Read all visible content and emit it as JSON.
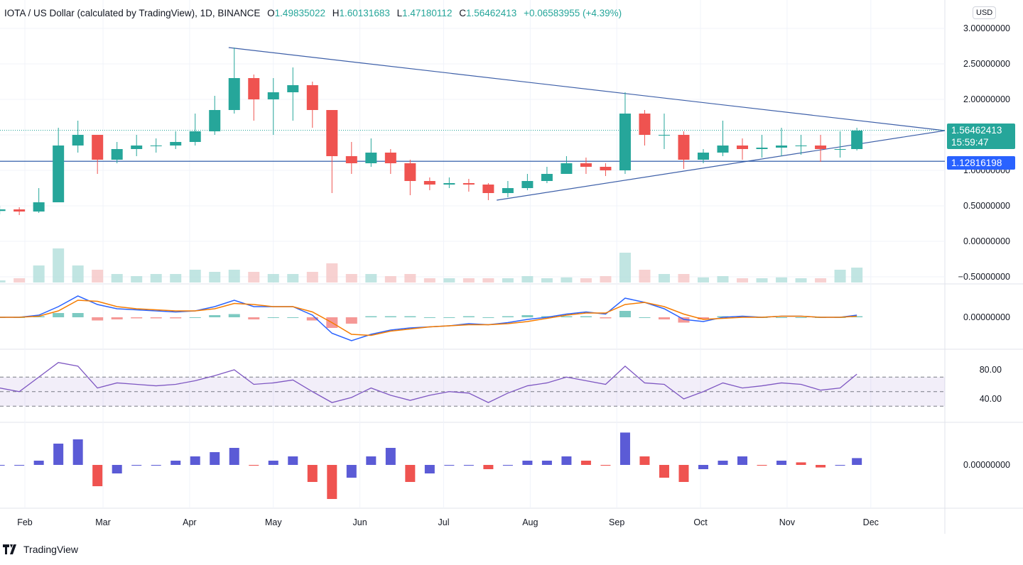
{
  "header": {
    "symbol": "IOTA / US Dollar (calculated by TradingView), 1D, BINANCE",
    "o_label": "O",
    "o": "1.49835022",
    "h_label": "H",
    "h": "1.60131683",
    "l_label": "L",
    "l": "1.47180112",
    "c_label": "C",
    "c": "1.56462413",
    "change": "+0.06583955 (+4.39%)"
  },
  "currency_button": "USD",
  "price_tag": {
    "value": "1.56462413",
    "countdown": "15:59:47",
    "color": "#26a69a"
  },
  "level_tag": {
    "value": "1.12816198",
    "color": "#2962ff"
  },
  "branding": "TradingView",
  "colors": {
    "up": "#26a69a",
    "down": "#ef5350",
    "trendline": "#3d5fa8",
    "macd": "#2962ff",
    "signal": "#f57c00",
    "rsi": "#7e57c2",
    "osc_up": "#5b5bd6",
    "osc_down": "#ef5350"
  },
  "chart_data": {
    "type": "candlestick",
    "x_ticks": [
      "Feb",
      "Mar",
      "Apr",
      "May",
      "Jun",
      "Jul",
      "Aug",
      "Sep",
      "Oct",
      "Nov",
      "Dec"
    ],
    "price_ticks": [
      "3.00000000",
      "2.50000000",
      "2.00000000",
      "1.00000000",
      "0.50000000",
      "0.00000000",
      "−0.50000000"
    ],
    "macd_ticks": [
      "0.00000000"
    ],
    "rsi_ticks": [
      "80.00",
      "40.00"
    ],
    "osc_ticks": [
      "0.00000000"
    ],
    "ylim": [
      -0.55,
      3.05
    ],
    "series": {
      "dates": [
        "Jan 23",
        "Jan 30",
        "Feb 6",
        "Feb 13",
        "Feb 20",
        "Feb 27",
        "Mar 6",
        "Mar 13",
        "Mar 20",
        "Mar 27",
        "Apr 3",
        "Apr 10",
        "Apr 17",
        "Apr 24",
        "May 1",
        "May 8",
        "May 15",
        "May 22",
        "May 29",
        "Jun 5",
        "Jun 12",
        "Jun 19",
        "Jun 26",
        "Jul 3",
        "Jul 10",
        "Jul 17",
        "Jul 24",
        "Jul 31",
        "Aug 7",
        "Aug 14",
        "Aug 21",
        "Aug 28",
        "Sep 4",
        "Sep 11",
        "Sep 18",
        "Sep 25",
        "Oct 2",
        "Oct 9",
        "Oct 16",
        "Oct 23",
        "Oct 30",
        "Nov 6",
        "Nov 13",
        "Nov 20",
        "Nov 26"
      ],
      "close": [
        0.45,
        0.42,
        0.55,
        1.35,
        1.5,
        1.15,
        1.3,
        1.35,
        1.35,
        1.4,
        1.55,
        1.85,
        2.3,
        2.0,
        2.1,
        2.2,
        1.85,
        1.2,
        1.1,
        1.25,
        1.1,
        0.85,
        0.8,
        0.82,
        0.8,
        0.68,
        0.75,
        0.85,
        0.95,
        1.1,
        1.05,
        1.0,
        1.8,
        1.5,
        1.5,
        1.15,
        1.25,
        1.35,
        1.3,
        1.32,
        1.35,
        1.35,
        1.3,
        1.3,
        1.56
      ],
      "high": [
        0.5,
        0.48,
        0.75,
        1.6,
        1.7,
        1.5,
        1.4,
        1.5,
        1.45,
        1.55,
        1.8,
        2.05,
        2.73,
        2.35,
        2.3,
        2.45,
        2.25,
        1.85,
        1.4,
        1.45,
        1.3,
        1.15,
        0.9,
        0.9,
        0.88,
        0.82,
        0.85,
        0.95,
        1.05,
        1.2,
        1.18,
        1.1,
        2.1,
        1.85,
        1.8,
        1.55,
        1.3,
        1.7,
        1.45,
        1.5,
        1.6,
        1.5,
        1.5,
        1.55,
        1.6
      ],
      "low": [
        0.38,
        0.37,
        0.4,
        0.55,
        1.25,
        0.95,
        1.1,
        1.2,
        1.25,
        1.3,
        1.35,
        1.5,
        1.8,
        1.7,
        1.5,
        1.7,
        1.6,
        0.68,
        0.95,
        1.05,
        0.95,
        0.65,
        0.72,
        0.75,
        0.7,
        0.58,
        0.62,
        0.72,
        0.82,
        0.95,
        0.95,
        0.92,
        0.95,
        1.35,
        1.3,
        1.02,
        1.1,
        1.2,
        1.15,
        1.18,
        1.2,
        1.22,
        1.12,
        1.18,
        1.28
      ],
      "volume": [
        0.05,
        0.1,
        0.4,
        0.8,
        0.4,
        0.3,
        0.2,
        0.15,
        0.2,
        0.2,
        0.3,
        0.25,
        0.3,
        0.25,
        0.2,
        0.2,
        0.25,
        0.45,
        0.2,
        0.2,
        0.15,
        0.2,
        0.1,
        0.1,
        0.1,
        0.1,
        0.1,
        0.15,
        0.1,
        0.12,
        0.1,
        0.15,
        0.7,
        0.3,
        0.2,
        0.2,
        0.12,
        0.15,
        0.1,
        0.1,
        0.12,
        0.1,
        0.1,
        0.3,
        0.35
      ],
      "macd": [
        0.0,
        0.0,
        0.02,
        0.1,
        0.2,
        0.12,
        0.08,
        0.07,
        0.06,
        0.05,
        0.06,
        0.1,
        0.16,
        0.1,
        0.1,
        0.1,
        0.02,
        -0.15,
        -0.22,
        -0.16,
        -0.12,
        -0.1,
        -0.09,
        -0.08,
        -0.06,
        -0.07,
        -0.05,
        -0.02,
        0.0,
        0.03,
        0.05,
        0.03,
        0.18,
        0.14,
        0.08,
        -0.02,
        -0.04,
        0.0,
        0.01,
        0.0,
        0.01,
        0.01,
        0.0,
        0.0,
        0.02
      ],
      "signal": [
        0.0,
        0.0,
        0.01,
        0.06,
        0.16,
        0.15,
        0.1,
        0.08,
        0.07,
        0.06,
        0.06,
        0.08,
        0.13,
        0.12,
        0.1,
        0.1,
        0.05,
        -0.05,
        -0.16,
        -0.17,
        -0.13,
        -0.11,
        -0.09,
        -0.08,
        -0.07,
        -0.07,
        -0.06,
        -0.04,
        -0.01,
        0.02,
        0.04,
        0.04,
        0.12,
        0.14,
        0.1,
        0.03,
        -0.02,
        -0.01,
        0.0,
        0.0,
        0.01,
        0.01,
        0.0,
        0.0,
        0.01
      ],
      "rsi": [
        55,
        50,
        70,
        90,
        85,
        55,
        62,
        60,
        58,
        60,
        65,
        72,
        80,
        60,
        62,
        66,
        50,
        35,
        42,
        55,
        45,
        38,
        45,
        50,
        48,
        35,
        48,
        58,
        62,
        70,
        65,
        60,
        85,
        62,
        60,
        40,
        50,
        62,
        55,
        58,
        62,
        60,
        52,
        55,
        74
      ],
      "oscillator": [
        0,
        0,
        0.05,
        0.25,
        0.3,
        -0.25,
        -0.1,
        0,
        0,
        0.05,
        0.1,
        0.15,
        0.2,
        0,
        0.05,
        0.1,
        -0.2,
        -0.4,
        -0.15,
        0.1,
        0.2,
        -0.2,
        -0.1,
        0,
        0,
        -0.05,
        0,
        0.05,
        0.05,
        0.1,
        0.05,
        0,
        0.38,
        0.1,
        -0.15,
        -0.2,
        -0.05,
        0.05,
        0.1,
        0,
        0.05,
        0.03,
        -0.03,
        0,
        0.08
      ]
    },
    "lines": {
      "resistance": {
        "from": [
          "Apr 15",
          2.73
        ],
        "to": [
          "Dec 19",
          1.56
        ]
      },
      "support": {
        "from": [
          "Jul 20",
          0.58
        ],
        "to": [
          "Dec 19",
          1.56
        ]
      },
      "horizontal": 1.12816198,
      "last_price": 1.56462413
    }
  }
}
